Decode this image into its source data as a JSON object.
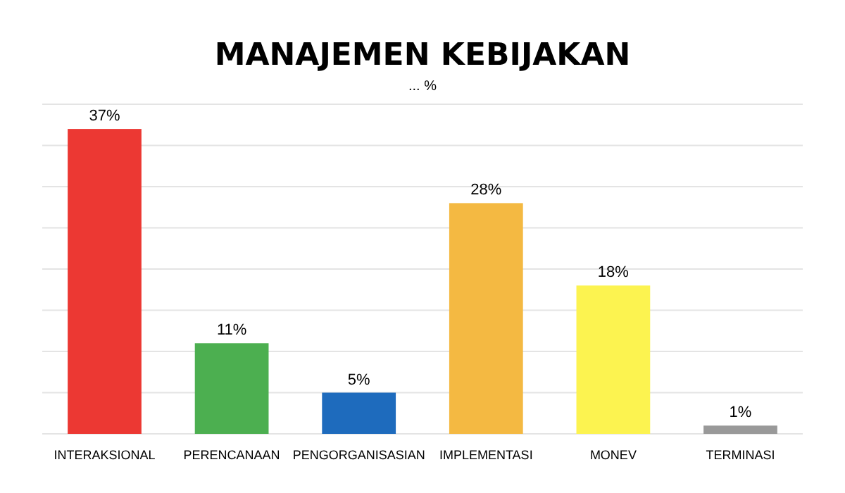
{
  "chart_data": {
    "type": "bar",
    "title": "MANAJEMEN KEBIJAKAN",
    "subtitle": "... %",
    "categories": [
      "INTERAKSIONAL",
      "PERENCANAAN",
      "PENGORGANISASIAN",
      "IMPLEMENTASI",
      "MONEV",
      "TERMINASI"
    ],
    "values": [
      37,
      11,
      5,
      28,
      18,
      1
    ],
    "colors": [
      "#ec3833",
      "#4caf50",
      "#1e6bbd",
      "#f4b942",
      "#fcf350",
      "#999999"
    ],
    "value_labels": [
      "37%",
      "11%",
      "5%",
      "28%",
      "18%",
      "1%"
    ],
    "ylim": [
      0,
      40
    ],
    "yticks": [
      {
        "value": 0,
        "label": null
      },
      {
        "value": 5,
        "label": null
      },
      {
        "value": 10,
        "label": null
      },
      {
        "value": 15,
        "label": null
      },
      {
        "value": 20,
        "label": null
      },
      {
        "value": 25,
        "label": null
      },
      {
        "value": 30,
        "label": null
      },
      {
        "value": 35,
        "label": null
      },
      {
        "value": 40,
        "label": null
      }
    ],
    "tick_labels": "x",
    "grid": "y"
  }
}
